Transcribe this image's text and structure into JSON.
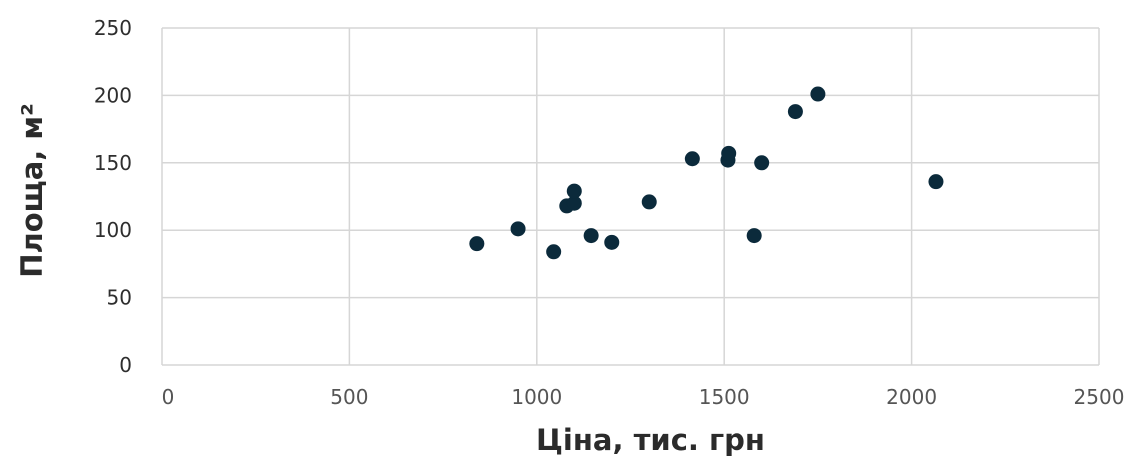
{
  "chart_data": {
    "type": "scatter",
    "title": "",
    "xlabel": "Ціна, тис. грн",
    "ylabel": "Площа, м²",
    "xlim": [
      0,
      2500
    ],
    "ylim": [
      0,
      250
    ],
    "x_ticks": [
      "0",
      "500",
      "1000",
      "1500",
      "2000",
      "2500"
    ],
    "y_ticks": [
      "0",
      "50",
      "100",
      "150",
      "200",
      "250"
    ],
    "grid": true,
    "legend": "none",
    "point_color": "#0b2a3b",
    "points": [
      {
        "x": 840,
        "y": 90
      },
      {
        "x": 950,
        "y": 101
      },
      {
        "x": 1045,
        "y": 84
      },
      {
        "x": 1080,
        "y": 118
      },
      {
        "x": 1100,
        "y": 120
      },
      {
        "x": 1100,
        "y": 129
      },
      {
        "x": 1145,
        "y": 96
      },
      {
        "x": 1200,
        "y": 91
      },
      {
        "x": 1300,
        "y": 121
      },
      {
        "x": 1415,
        "y": 153
      },
      {
        "x": 1510,
        "y": 152
      },
      {
        "x": 1512,
        "y": 157
      },
      {
        "x": 1580,
        "y": 96
      },
      {
        "x": 1600,
        "y": 150
      },
      {
        "x": 1690,
        "y": 188
      },
      {
        "x": 1750,
        "y": 201
      },
      {
        "x": 2065,
        "y": 136
      }
    ]
  }
}
